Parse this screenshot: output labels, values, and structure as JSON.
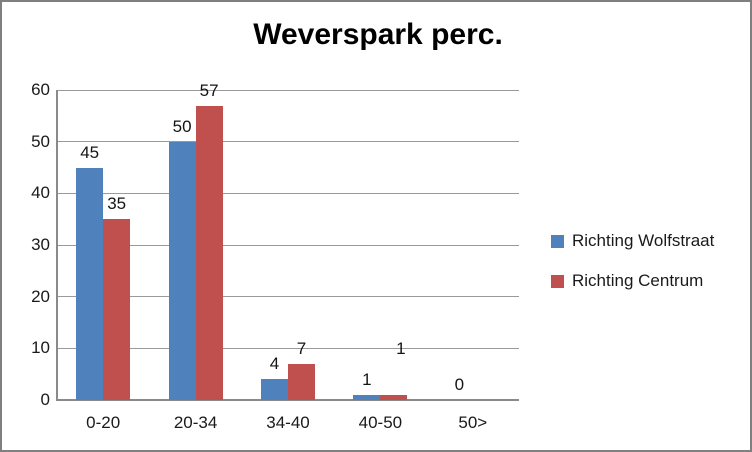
{
  "chart_data": {
    "type": "bar",
    "title": "Weverspark perc.",
    "categories": [
      "0-20",
      "20-34",
      "34-40",
      "40-50",
      "50>"
    ],
    "series": [
      {
        "name": "Richting Wolfstraat",
        "color": "#4F81BD",
        "values": [
          45,
          50,
          4,
          1,
          0
        ],
        "labels": [
          "45",
          "50",
          "4",
          "1",
          "0"
        ]
      },
      {
        "name": "Richting Centrum",
        "color": "#C0504D",
        "values": [
          35,
          57,
          7,
          1,
          null
        ],
        "labels": [
          "35",
          "57",
          "7",
          "1",
          ""
        ]
      }
    ],
    "ylim": [
      0,
      60
    ],
    "yticks": [
      0,
      10,
      20,
      30,
      40,
      50,
      60
    ],
    "xlabel": "",
    "ylabel": "",
    "grid": "horizontal",
    "legend_position": "right",
    "colors": {
      "gridline": "#9a9a9a",
      "axis": "#8a8a8a",
      "frame_border": "#7f7f7f",
      "text": "#1a1a1a"
    }
  }
}
